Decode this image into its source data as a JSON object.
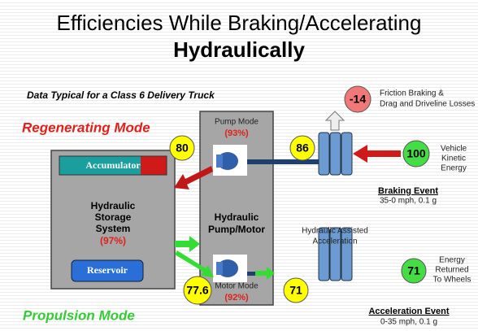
{
  "header": {
    "title": "Efficiencies While Braking/Accelerating",
    "title_bold": "Hydraulically",
    "subtitle": "Data Typical for a Class 6 Delivery Truck"
  },
  "modes": {
    "regenerating": "Regenerating Mode",
    "propulsion": "Propulsion Mode"
  },
  "pump_motor": {
    "pump_mode": "Pump Mode",
    "pump_efficiency": "(93%)",
    "label": [
      "Hydraulic",
      "Pump/Motor"
    ],
    "motor_mode": "Motor Mode",
    "motor_efficiency": "(92%)"
  },
  "storage": {
    "accumulator": "Accumulator",
    "label": [
      "Hydraulic",
      "Storage",
      "System"
    ],
    "efficiency": "(97%)",
    "reservoir": "Reservoir"
  },
  "energy_values": {
    "stored": 80,
    "pump_input": 86,
    "losses": -14,
    "kinetic": 100,
    "storage_output": 77.6,
    "motor_output": 71,
    "returned": 71
  },
  "braking": {
    "losses_label": [
      "Friction Braking &",
      "Drag and Driveline Losses"
    ],
    "source_label": [
      "Vehicle",
      "Kinetic",
      "Energy"
    ],
    "event": "Braking Event",
    "event_detail": "35-0 mph, 0.1 g"
  },
  "acceleration": {
    "assist_label": [
      "Hydraulic Assisted",
      "Acceleration"
    ],
    "returned_label": [
      "Energy",
      "Returned",
      "To Wheels"
    ],
    "event": "Acceleration Event",
    "event_detail": "0-35 mph, 0.1 g"
  }
}
